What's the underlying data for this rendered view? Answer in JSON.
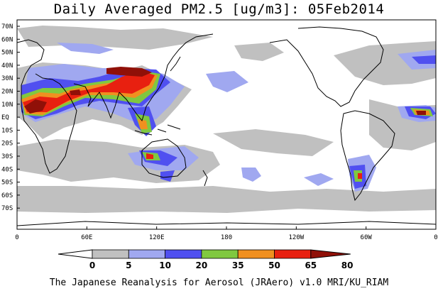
{
  "title": "Daily Averaged PM2.5 [ug/m3]: 05Feb2014",
  "credit": "The Japanese Reanalysis for Aerosol (JRAero) v1.0 MRI/KU_RIAM",
  "lat_ticks": [
    "70N",
    "60N",
    "50N",
    "40N",
    "30N",
    "20N",
    "10N",
    "EQ",
    "10S",
    "20S",
    "30S",
    "40S",
    "50S",
    "60S",
    "70S"
  ],
  "lon_ticks": [
    "0",
    "60E",
    "120E",
    "180",
    "120W",
    "60W",
    "0"
  ],
  "colorbar": {
    "levels": [
      "0",
      "5",
      "10",
      "20",
      "35",
      "50",
      "65",
      "80"
    ],
    "colors": [
      "#ffffff",
      "#c0c0c0",
      "#a0a8f0",
      "#5050f0",
      "#80c840",
      "#f09020",
      "#e82010",
      "#901008"
    ]
  }
}
